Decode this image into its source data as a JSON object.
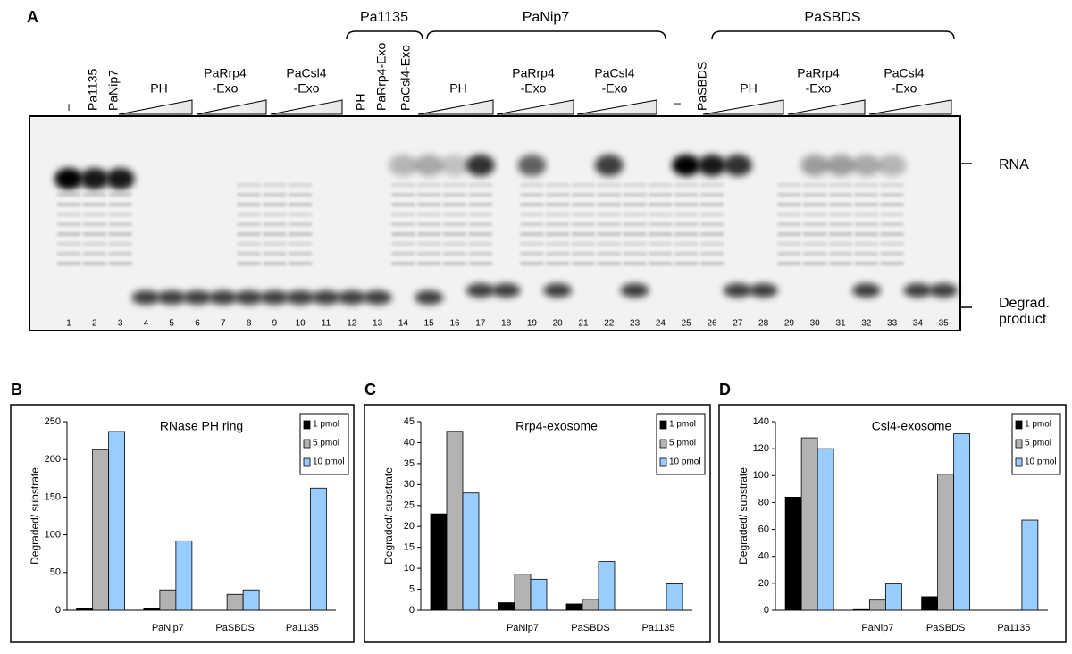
{
  "panel_a": {
    "label": "A",
    "group_labels": [
      "Pa1135",
      "PaNip7",
      "PaSBDS"
    ],
    "lane_headers": [
      "–",
      "Pa1135",
      "PaNip7",
      [
        "PH"
      ],
      [
        "PaRrp4",
        "-Exo"
      ],
      [
        "PaCsl4",
        "-Exo"
      ],
      "PH",
      "PaRrp4-Exo",
      "PaCsl4-Exo",
      [
        "PH"
      ],
      [
        "PaRrp4",
        "-Exo"
      ],
      [
        "PaCsl4",
        "-Exo"
      ],
      "–",
      "PaSBDS",
      [
        "PH"
      ],
      [
        "PaRrp4",
        "-Exo"
      ],
      [
        "PaCsl4",
        "-Exo"
      ]
    ],
    "lane_numbers": [
      1,
      2,
      3,
      4,
      5,
      6,
      7,
      8,
      9,
      10,
      11,
      12,
      13,
      14,
      15,
      16,
      17,
      18,
      19,
      20,
      21,
      22,
      23,
      24,
      25,
      26,
      27,
      28,
      29,
      30,
      31,
      32,
      33,
      34,
      35
    ],
    "rna_label": "RNA",
    "product_label": [
      "Degrad.",
      "product"
    ]
  },
  "chart_data": [
    {
      "type": "bar",
      "panel": "B",
      "title": "RNase PH ring",
      "ylabel": "Degraded/ substrate",
      "categories": [
        null,
        "PaNip7",
        "PaSBDS",
        "Pa1135"
      ],
      "series": [
        {
          "name": "1 pmol",
          "color": "#000000",
          "values": [
            2,
            2,
            0,
            null
          ]
        },
        {
          "name": "5 pmol",
          "color": "#b3b3b3",
          "values": [
            213,
            27,
            21,
            null
          ]
        },
        {
          "name": "10 pmol",
          "color": "#99ccff",
          "values": [
            237,
            92,
            27,
            162
          ]
        }
      ],
      "ylim": [
        0,
        250
      ],
      "yticks": [
        0,
        50,
        100,
        150,
        200,
        250
      ]
    },
    {
      "type": "bar",
      "panel": "C",
      "title": "Rrp4-exosome",
      "ylabel": "Degraded/ substrate",
      "categories": [
        null,
        "PaNip7",
        "PaSBDS",
        "Pa1135"
      ],
      "series": [
        {
          "name": "1 pmol",
          "color": "#000000",
          "values": [
            23,
            1.8,
            1.5,
            null
          ]
        },
        {
          "name": "5 pmol",
          "color": "#b3b3b3",
          "values": [
            42.7,
            8.6,
            2.6,
            null
          ]
        },
        {
          "name": "10 pmol",
          "color": "#99ccff",
          "values": [
            28,
            7.4,
            11.6,
            6.3
          ]
        }
      ],
      "ylim": [
        0,
        45
      ],
      "yticks": [
        0,
        5,
        10,
        15,
        20,
        25,
        30,
        35,
        40,
        45
      ]
    },
    {
      "type": "bar",
      "panel": "D",
      "title": "Csl4-exosome",
      "ylabel": "Degraded/ substrate",
      "categories": [
        null,
        "PaNip7",
        "PaSBDS",
        "Pa1135"
      ],
      "series": [
        {
          "name": "1 pmol",
          "color": "#000000",
          "values": [
            84,
            0.5,
            10,
            null
          ]
        },
        {
          "name": "5 pmol",
          "color": "#b3b3b3",
          "values": [
            128,
            7.5,
            101,
            null
          ]
        },
        {
          "name": "10 pmol",
          "color": "#99ccff",
          "values": [
            120,
            19.5,
            131,
            67
          ]
        }
      ],
      "ylim": [
        0,
        140
      ],
      "yticks": [
        0,
        20,
        40,
        60,
        80,
        100,
        120,
        140
      ]
    }
  ]
}
